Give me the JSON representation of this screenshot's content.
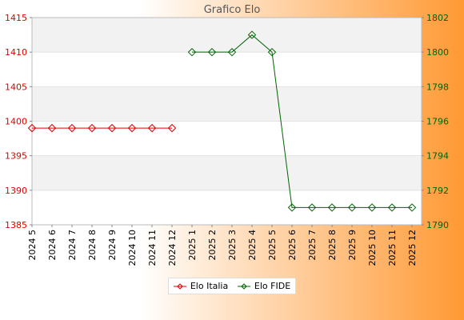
{
  "colors": {
    "italia": "#e00000",
    "fide": "#006400",
    "bg_light": "#ffffff",
    "bg_accent": "#ff9933",
    "band": "#f2f2f2"
  },
  "chart_data": {
    "type": "line",
    "title": "Grafico Elo",
    "categories": [
      "2024 5",
      "2024 6",
      "2024 7",
      "2024 8",
      "2024 9",
      "2024 10",
      "2024 11",
      "2024 12",
      "2025 1",
      "2025 2",
      "2025 3",
      "2025 4",
      "2025 5",
      "2025 6",
      "2025 7",
      "2025 8",
      "2025 9",
      "2025 10",
      "2025 11",
      "2025 12"
    ],
    "y_left": {
      "ticks": [
        "1385",
        "1390",
        "1395",
        "1400",
        "1405",
        "1410",
        "1415"
      ],
      "range": [
        1385,
        1415
      ]
    },
    "y_right": {
      "ticks": [
        "1790",
        "1792",
        "1794",
        "1796",
        "1798",
        "1800",
        "1802"
      ],
      "range": [
        1790,
        1802
      ]
    },
    "grid": true,
    "legend_position": "bottom",
    "series": [
      {
        "name": "Elo Italia",
        "axis": "left",
        "values": [
          1399,
          1399,
          1399,
          1399,
          1399,
          1399,
          1399,
          1399,
          null,
          null,
          null,
          null,
          null,
          null,
          null,
          null,
          null,
          null,
          null,
          null
        ]
      },
      {
        "name": "Elo FIDE",
        "axis": "right",
        "values": [
          null,
          null,
          null,
          null,
          null,
          null,
          null,
          null,
          1800,
          1800,
          1800,
          1801,
          1800,
          1791,
          1791,
          1791,
          1791,
          1791,
          1791,
          1791
        ]
      }
    ]
  }
}
